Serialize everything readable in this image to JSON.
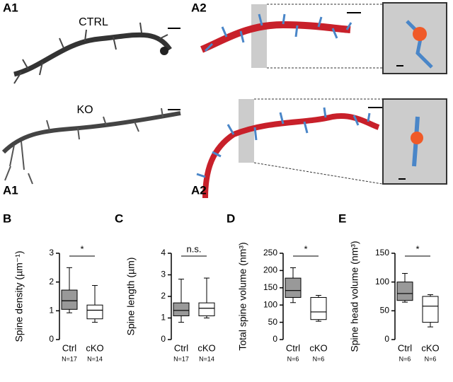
{
  "figure": {
    "a1": "A1",
    "a2": "A2",
    "ctrl": "CTRL",
    "ko": "KO"
  },
  "chart_data": [
    {
      "type": "box",
      "panel": "B",
      "ylabel": "Spine density (µm⁻¹)",
      "categories": [
        "Ctrl",
        "cKO"
      ],
      "counts": [
        "N=17",
        "N=14"
      ],
      "annotation": "*",
      "boxes": [
        {
          "whislo": 0.93,
          "q1": 1.05,
          "med": 1.35,
          "q3": 1.72,
          "whishi": 2.5,
          "color": "#999999"
        },
        {
          "whislo": 0.6,
          "q1": 0.72,
          "med": 1.02,
          "q3": 1.2,
          "whishi": 1.88,
          "color": "#ffffff"
        }
      ],
      "ylim": [
        0,
        3
      ],
      "yticks": [
        0,
        1,
        2,
        3
      ]
    },
    {
      "type": "box",
      "panel": "C",
      "ylabel": "Spine length (µm)",
      "categories": [
        "Ctrl",
        "cKO"
      ],
      "counts": [
        "N=17",
        "N=14"
      ],
      "annotation": "n.s.",
      "boxes": [
        {
          "whislo": 0.8,
          "q1": 1.1,
          "med": 1.35,
          "q3": 1.7,
          "whishi": 2.8,
          "color": "#999999"
        },
        {
          "whislo": 1.0,
          "q1": 1.1,
          "med": 1.45,
          "q3": 1.7,
          "whishi": 2.85,
          "color": "#ffffff"
        }
      ],
      "ylim": [
        0,
        4
      ],
      "yticks": [
        0,
        1,
        2,
        3,
        4
      ]
    },
    {
      "type": "box",
      "panel": "D",
      "ylabel": "Total spine volume (nm³)",
      "categories": [
        "Ctrl",
        "cKO"
      ],
      "counts": [
        "N=6",
        "N=6"
      ],
      "annotation": "*",
      "boxes": [
        {
          "whislo": 107,
          "q1": 122,
          "med": 142,
          "q3": 178,
          "whishi": 208,
          "color": "#999999"
        },
        {
          "whislo": 53,
          "q1": 58,
          "med": 80,
          "q3": 122,
          "whishi": 128,
          "color": "#ffffff"
        }
      ],
      "ylim": [
        0,
        250
      ],
      "yticks": [
        0,
        50,
        100,
        150,
        200,
        250
      ]
    },
    {
      "type": "box",
      "panel": "E",
      "ylabel": "Spine head volume (nm³)",
      "categories": [
        "Ctrl",
        "cKO"
      ],
      "counts": [
        "N=6",
        "N=6"
      ],
      "annotation": "*",
      "boxes": [
        {
          "whislo": 65,
          "q1": 68,
          "med": 80,
          "q3": 100,
          "whishi": 115,
          "color": "#999999"
        },
        {
          "whislo": 22,
          "q1": 30,
          "med": 58,
          "q3": 75,
          "whishi": 78,
          "color": "#ffffff"
        }
      ],
      "ylim": [
        0,
        150
      ],
      "yticks": [
        0,
        50,
        100,
        150
      ]
    }
  ]
}
